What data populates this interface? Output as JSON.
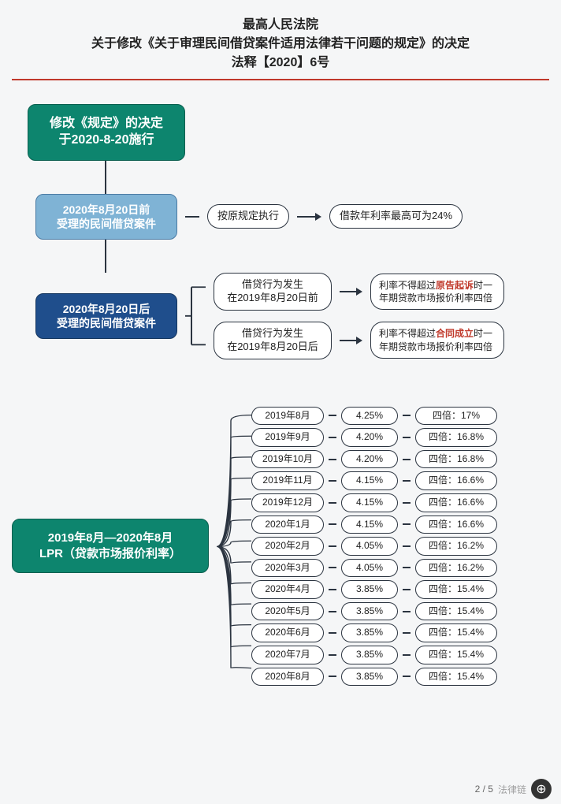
{
  "header": {
    "line1": "最高人民法院",
    "line2": "关于修改《关于审理民间借贷案件适用法律若干问题的规定》的决定",
    "line3": "法释【2020】6号"
  },
  "colors": {
    "teal": "#0d856e",
    "lightblue": "#7fb3d5",
    "darkblue": "#1f4e8c",
    "border": "#2b3440",
    "hr": "#c0392b",
    "bg": "#f5f6f7"
  },
  "nodes": {
    "root": "修改《规定》的决定\n于2020-8-20施行",
    "before": "2020年8月20日前\n受理的民间借贷案件",
    "after": "2020年8月20日后\n受理的民间借贷案件",
    "before_rule": "按原规定执行",
    "before_rate": "借款年利率最高可为24%",
    "after_a": "借贷行为发生\n在2019年8月20日前",
    "after_b": "借贷行为发生\n在2019年8月20日后",
    "note_a_pre": "利率不得超过",
    "note_a_hl": "原告起诉",
    "note_a_post": "时一年期贷款市场报价利率四倍",
    "note_b_pre": "利率不得超过",
    "note_b_hl": "合同成立",
    "note_b_post": "时一年期贷款市场报价利率四倍",
    "lpr_title": "2019年8月—2020年8月\nLPR（贷款市场报价利率）"
  },
  "lpr": [
    {
      "month": "2019年8月",
      "rate": "4.25%",
      "quad": "四倍：17%"
    },
    {
      "month": "2019年9月",
      "rate": "4.20%",
      "quad": "四倍：16.8%"
    },
    {
      "month": "2019年10月",
      "rate": "4.20%",
      "quad": "四倍：16.8%"
    },
    {
      "month": "2019年11月",
      "rate": "4.15%",
      "quad": "四倍：16.6%"
    },
    {
      "month": "2019年12月",
      "rate": "4.15%",
      "quad": "四倍：16.6%"
    },
    {
      "month": "2020年1月",
      "rate": "4.15%",
      "quad": "四倍：16.6%"
    },
    {
      "month": "2020年2月",
      "rate": "4.05%",
      "quad": "四倍：16.2%"
    },
    {
      "month": "2020年3月",
      "rate": "4.05%",
      "quad": "四倍：16.2%"
    },
    {
      "month": "2020年4月",
      "rate": "3.85%",
      "quad": "四倍：15.4%"
    },
    {
      "month": "2020年5月",
      "rate": "3.85%",
      "quad": "四倍：15.4%"
    },
    {
      "month": "2020年6月",
      "rate": "3.85%",
      "quad": "四倍：15.4%"
    },
    {
      "month": "2020年7月",
      "rate": "3.85%",
      "quad": "四倍：15.4%"
    },
    {
      "month": "2020年8月",
      "rate": "3.85%",
      "quad": "四倍：15.4%"
    }
  ],
  "footer": {
    "page": "2 / 5",
    "zoom_icon": "⊕",
    "share_label": "法律链"
  }
}
